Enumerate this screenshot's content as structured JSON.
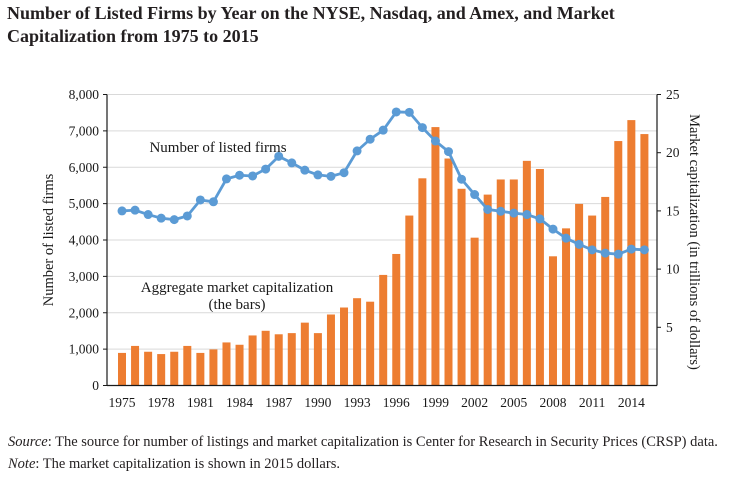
{
  "title": {
    "lines": [
      "Number of Listed Firms by Year on the NYSE, Nasdaq, and Amex, and Market",
      "Capitalization from 1975 to 2015"
    ]
  },
  "chart_data": {
    "type": "combo",
    "x": [
      1975,
      1976,
      1977,
      1978,
      1979,
      1980,
      1981,
      1982,
      1983,
      1984,
      1985,
      1986,
      1987,
      1988,
      1989,
      1990,
      1991,
      1992,
      1993,
      1994,
      1995,
      1996,
      1997,
      1998,
      1999,
      2000,
      2001,
      2002,
      2003,
      2004,
      2005,
      2006,
      2007,
      2008,
      2009,
      2010,
      2011,
      2012,
      2013,
      2014,
      2015
    ],
    "series": [
      {
        "name": "Number of listed firms",
        "type": "line",
        "axis": "left",
        "color": "#5b9bd5",
        "values": [
          4800,
          4820,
          4700,
          4600,
          4560,
          4660,
          5100,
          5050,
          5680,
          5780,
          5760,
          5950,
          6300,
          6120,
          5920,
          5790,
          5750,
          5850,
          6450,
          6770,
          7020,
          7520,
          7510,
          7090,
          6720,
          6430,
          5670,
          5250,
          4840,
          4790,
          4740,
          4700,
          4580,
          4300,
          4050,
          3880,
          3730,
          3640,
          3610,
          3750,
          3730
        ]
      },
      {
        "name": "Aggregate market capitalization (the bars)",
        "type": "bar",
        "axis": "right",
        "color": "#ed7d31",
        "values": [
          2.8,
          3.4,
          2.9,
          2.7,
          2.9,
          3.4,
          2.8,
          3.1,
          3.7,
          3.5,
          4.3,
          4.7,
          4.4,
          4.5,
          5.4,
          4.5,
          6.1,
          6.7,
          7.5,
          7.2,
          9.5,
          11.3,
          14.6,
          17.8,
          22.2,
          19.5,
          16.9,
          12.7,
          16.4,
          17.7,
          17.7,
          19.3,
          18.6,
          11.1,
          13.5,
          15.6,
          14.6,
          16.2,
          21.0,
          22.8,
          21.6
        ]
      }
    ],
    "left_axis": {
      "title": "Number of listed firms",
      "min": 0,
      "max": 8000,
      "tick_step": 1000
    },
    "right_axis": {
      "title": "Market capitalization (in trillions of dollars)",
      "min": 0,
      "max": 25,
      "tick_step": 5
    },
    "x_axis": {
      "tick_labels": [
        1975,
        1978,
        1981,
        1984,
        1987,
        1990,
        1993,
        1996,
        1999,
        2002,
        2005,
        2008,
        2011,
        2014
      ]
    },
    "annotations": {
      "line_label": "Number of listed firms",
      "bars_label_line1": "Aggregate market capitalization",
      "bars_label_line2": "(the bars)"
    },
    "grid_on": true,
    "grid_color": "#d9d9d9",
    "axis_color": "#1a1a1a",
    "legend_position": "none"
  },
  "footer": {
    "source_label": "Source",
    "source_text": ": The source for number of listings and market capitalization is Center for Research in Security Prices (CRSP) data.",
    "note_label": "Note",
    "note_text": ": The market capitalization is shown in 2015 dollars."
  }
}
